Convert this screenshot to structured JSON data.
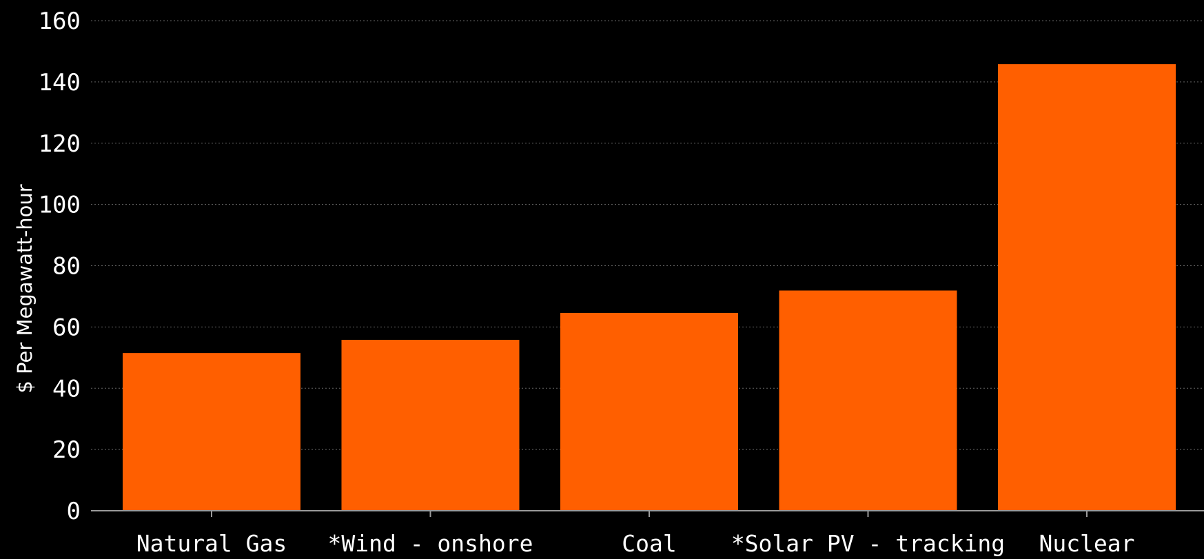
{
  "colors": {
    "background": "#000000",
    "bar": "#ff5f00",
    "text": "#ffffff",
    "grid": "#666666",
    "axis": "#9a9a9a"
  },
  "chart_data": {
    "type": "bar",
    "categories": [
      "Natural Gas",
      "*Wind - onshore",
      "Coal",
      "*Solar PV - tracking",
      "Nuclear"
    ],
    "values": [
      51.5,
      55.8,
      64.6,
      71.9,
      145.8
    ],
    "title": "",
    "xlabel": "",
    "ylabel": "$ Per Megawatt-hour",
    "ylim": [
      0,
      160
    ],
    "yticks": [
      0,
      20,
      40,
      60,
      80,
      100,
      120,
      140,
      160
    ],
    "grid": true,
    "legend": "none"
  }
}
